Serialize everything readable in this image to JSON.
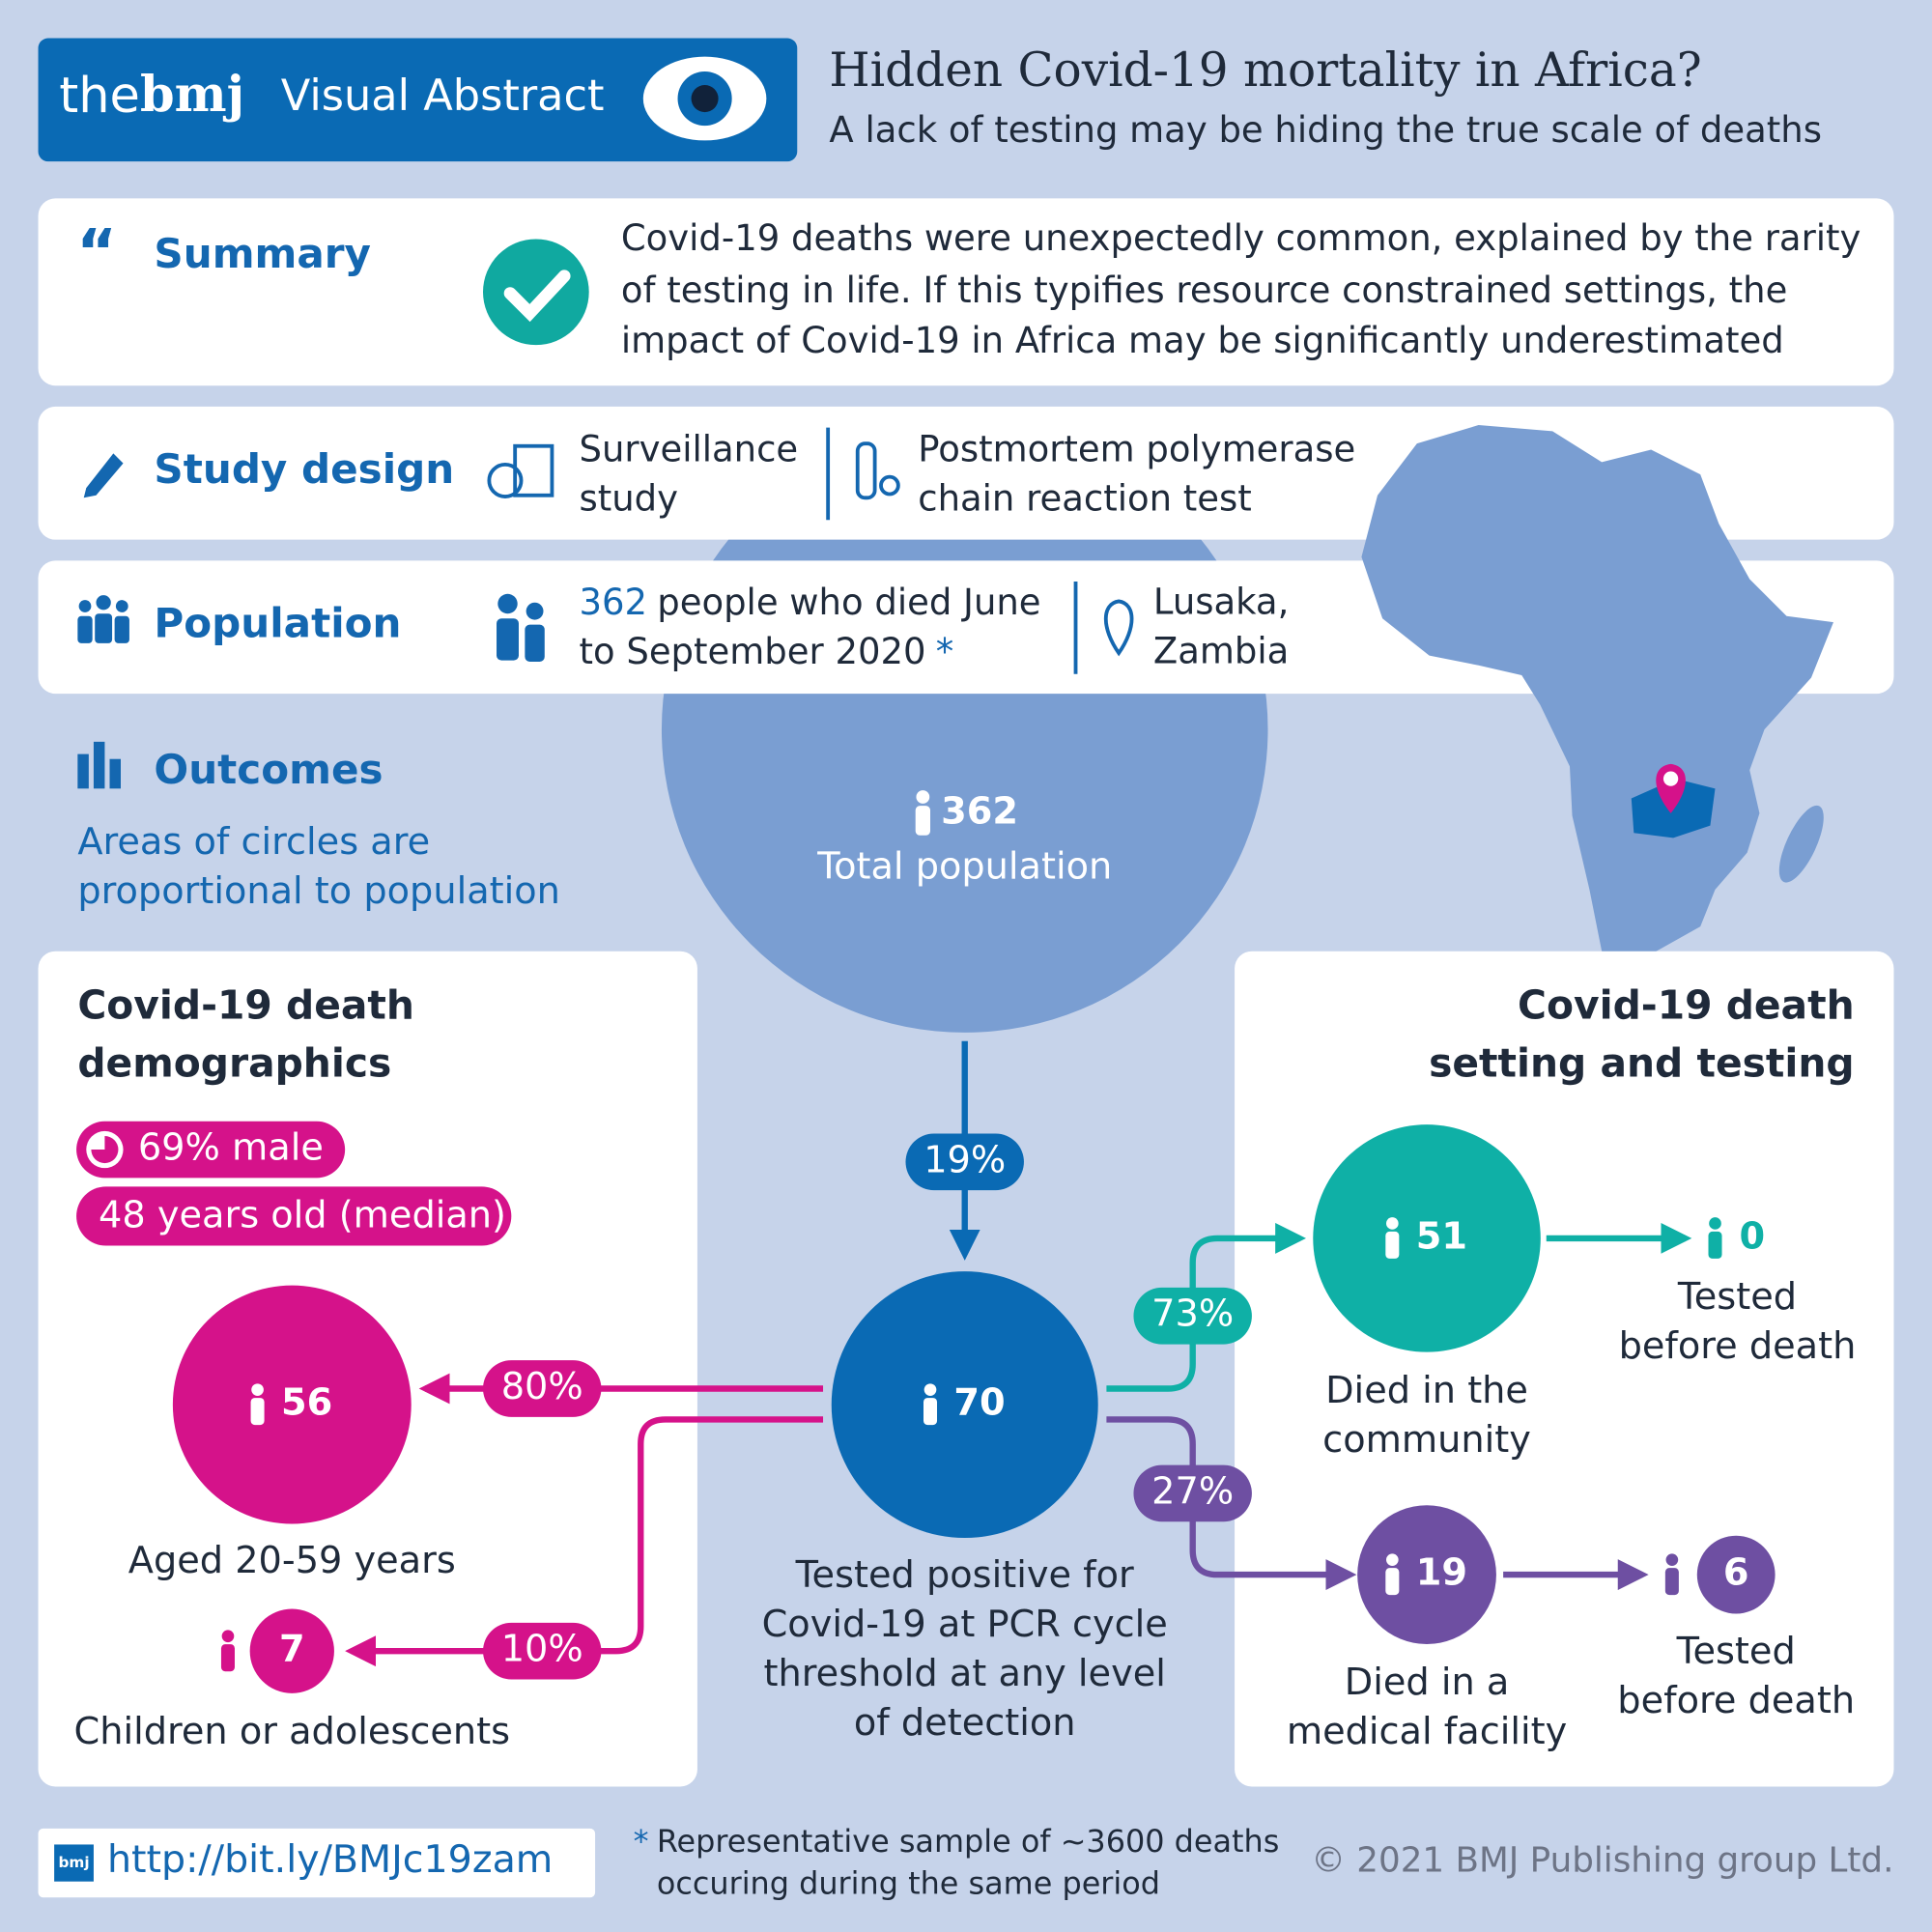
{
  "header": {
    "brand_the": "the",
    "brand_bmj": "bmj",
    "label": "Visual Abstract",
    "title": "Hidden Covid-19 mortality in Africa?",
    "subtitle": "A lack of testing may be hiding the true scale of deaths"
  },
  "summary": {
    "heading": "Summary",
    "lines": [
      "Covid-19 deaths were unexpectedly common, explained by the rarity",
      "of testing in life. If this typifies resource constrained settings, the",
      "impact of Covid-19 in Africa may be significantly underestimated"
    ]
  },
  "study_design": {
    "heading": "Study design",
    "items": [
      [
        "Surveillance",
        "study"
      ],
      [
        "Postmortem polymerase",
        "chain reaction test"
      ]
    ]
  },
  "population": {
    "heading": "Population",
    "count": 362,
    "lines": [
      "people who died June",
      "to September 2020"
    ],
    "note_mark": "*",
    "location": [
      "Lusaka,",
      "Zambia"
    ]
  },
  "outcomes": {
    "heading": "Outcomes",
    "note": [
      "Areas of circles are",
      "proportional to population"
    ]
  },
  "demographics": {
    "heading": [
      "Covid-19 death",
      "demographics"
    ],
    "tags": [
      "69% male",
      "48 years old (median)"
    ]
  },
  "setting": {
    "heading": [
      "Covid-19 death",
      "setting and testing"
    ]
  },
  "flow": {
    "total": {
      "count": 362,
      "label": [
        "Total population"
      ]
    },
    "positive": {
      "share": "19%",
      "count": 70,
      "label": [
        "Tested positive for",
        "Covid-19 at PCR cycle",
        "threshold at any level",
        "of detection"
      ]
    },
    "adults": {
      "share": "80%",
      "count": 56,
      "label": [
        "Aged 20-59 years"
      ]
    },
    "children": {
      "share": "10%",
      "count": 7,
      "label": [
        "Children or adolescents"
      ]
    },
    "community": {
      "share": "73%",
      "count": 51,
      "label": [
        "Died in the",
        "community"
      ]
    },
    "community_tested": {
      "count": 0,
      "label": [
        "Tested",
        "before death"
      ]
    },
    "facility": {
      "share": "27%",
      "count": 19,
      "label": [
        "Died in a",
        "medical facility"
      ]
    },
    "facility_tested": {
      "count": 6,
      "label": [
        "Tested",
        "before death"
      ]
    }
  },
  "footer": {
    "logo": "bmj",
    "url": "http://bit.ly/BMJc19zam",
    "note_mark": "*",
    "note": [
      "Representative sample of ~3600 deaths",
      "occuring during the same period"
    ],
    "copyright": "© 2021 BMJ Publishing group Ltd."
  }
}
